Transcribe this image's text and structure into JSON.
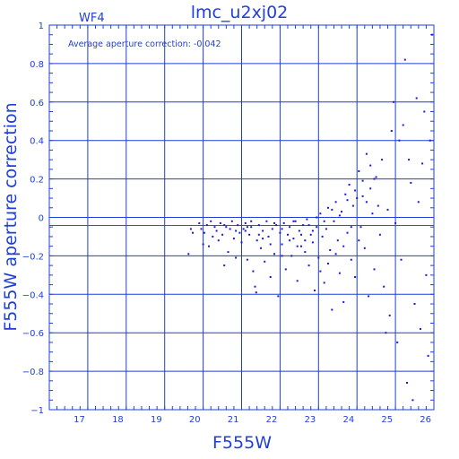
{
  "colors": {
    "axis": "#1f3fd8",
    "points": "#1a1ad6",
    "mean_line": "#b03030",
    "background": "#ffffff"
  },
  "chart_data": {
    "type": "scatter",
    "title": "lmc_u2xj02",
    "subtitle": "WF4",
    "annotation": "Average aperture correction:  -0.042",
    "xlabel": "F555W",
    "ylabel": "F555W aperture correction",
    "xlim": [
      16,
      26
    ],
    "ylim": [
      -1,
      1
    ],
    "x_ticks": [
      17,
      18,
      19,
      20,
      21,
      22,
      23,
      24,
      25,
      26
    ],
    "y_ticks": [
      -1,
      -0.8,
      -0.6,
      -0.4,
      -0.2,
      0,
      0.2,
      0.4,
      0.6,
      0.8,
      1
    ],
    "x_tick_labels": [
      "17",
      "18",
      "19",
      "20",
      "21",
      "22",
      "23",
      "24",
      "25",
      "26"
    ],
    "y_tick_labels": [
      "−1",
      "−0.8",
      "−0.6",
      "−0.4",
      "−0.2",
      "0",
      "0.2",
      "0.4",
      "0.6",
      "0.8",
      "1"
    ],
    "grid": true,
    "reference_line_y": -0.042,
    "points": [
      [
        19.62,
        -0.19
      ],
      [
        19.68,
        -0.06
      ],
      [
        19.73,
        -0.08
      ],
      [
        19.9,
        -0.03
      ],
      [
        19.95,
        -0.06
      ],
      [
        20.0,
        -0.14
      ],
      [
        20.03,
        -0.08
      ],
      [
        20.1,
        -0.04
      ],
      [
        20.15,
        -0.15
      ],
      [
        20.2,
        -0.02
      ],
      [
        20.25,
        -0.1
      ],
      [
        20.3,
        -0.05
      ],
      [
        20.35,
        -0.07
      ],
      [
        20.4,
        -0.12
      ],
      [
        20.45,
        -0.03
      ],
      [
        20.5,
        -0.09
      ],
      [
        20.55,
        -0.25
      ],
      [
        20.6,
        -0.05
      ],
      [
        20.65,
        -0.18
      ],
      [
        20.7,
        -0.06
      ],
      [
        20.75,
        -0.02
      ],
      [
        20.8,
        -0.11
      ],
      [
        20.85,
        -0.21
      ],
      [
        20.9,
        -0.04
      ],
      [
        20.95,
        -0.08
      ],
      [
        21.0,
        -0.13
      ],
      [
        21.05,
        -0.06
      ],
      [
        21.1,
        -0.03
      ],
      [
        21.15,
        -0.22
      ],
      [
        21.2,
        -0.09
      ],
      [
        21.25,
        -0.05
      ],
      [
        21.3,
        -0.28
      ],
      [
        21.35,
        -0.36
      ],
      [
        21.38,
        -0.39
      ],
      [
        21.4,
        -0.12
      ],
      [
        21.45,
        -0.04
      ],
      [
        21.5,
        -0.16
      ],
      [
        21.55,
        -0.07
      ],
      [
        21.6,
        -0.23
      ],
      [
        21.65,
        -0.02
      ],
      [
        21.7,
        -0.1
      ],
      [
        21.75,
        -0.31
      ],
      [
        21.8,
        -0.06
      ],
      [
        21.85,
        -0.19
      ],
      [
        21.9,
        -0.04
      ],
      [
        21.95,
        -0.41
      ],
      [
        22.0,
        -0.08
      ],
      [
        22.05,
        -0.14
      ],
      [
        22.1,
        -0.03
      ],
      [
        22.15,
        -0.27
      ],
      [
        22.2,
        -0.09
      ],
      [
        22.25,
        -0.05
      ],
      [
        22.3,
        -0.2
      ],
      [
        22.35,
        -0.11
      ],
      [
        22.4,
        -0.02
      ],
      [
        22.45,
        -0.33
      ],
      [
        22.5,
        -0.07
      ],
      [
        22.55,
        -0.15
      ],
      [
        22.6,
        -0.04
      ],
      [
        22.65,
        -0.18
      ],
      [
        22.7,
        -0.01
      ],
      [
        22.75,
        -0.25
      ],
      [
        22.8,
        -0.09
      ],
      [
        22.85,
        -0.13
      ],
      [
        22.9,
        -0.38
      ],
      [
        22.95,
        -0.05
      ],
      [
        23.0,
        -0.21
      ],
      [
        23.05,
        0.02
      ],
      [
        23.1,
        -0.1
      ],
      [
        23.15,
        -0.34
      ],
      [
        23.2,
        -0.06
      ],
      [
        23.25,
        0.05
      ],
      [
        23.3,
        -0.17
      ],
      [
        23.35,
        -0.48
      ],
      [
        23.4,
        -0.02
      ],
      [
        23.45,
        0.08
      ],
      [
        23.5,
        -0.12
      ],
      [
        23.55,
        -0.29
      ],
      [
        23.6,
        0.03
      ],
      [
        23.65,
        -0.44
      ],
      [
        23.7,
        0.12
      ],
      [
        23.75,
        -0.08
      ],
      [
        23.8,
        0.17
      ],
      [
        23.85,
        -0.22
      ],
      [
        23.9,
        0.06
      ],
      [
        23.95,
        -0.31
      ],
      [
        24.0,
        0.1
      ],
      [
        24.05,
        0.24
      ],
      [
        24.1,
        -0.05
      ],
      [
        24.15,
        0.19
      ],
      [
        24.2,
        -0.16
      ],
      [
        24.25,
        0.08
      ],
      [
        24.3,
        -0.41
      ],
      [
        24.35,
        0.15
      ],
      [
        24.4,
        0.02
      ],
      [
        24.45,
        -0.27
      ],
      [
        24.5,
        0.21
      ],
      [
        24.6,
        -0.09
      ],
      [
        24.65,
        0.3
      ],
      [
        24.7,
        -0.36
      ],
      [
        24.75,
        -0.6
      ],
      [
        24.8,
        0.04
      ],
      [
        24.85,
        -0.51
      ],
      [
        24.9,
        0.45
      ],
      [
        24.95,
        0.6
      ],
      [
        25.0,
        -0.03
      ],
      [
        25.05,
        -0.65
      ],
      [
        25.1,
        0.4
      ],
      [
        25.15,
        -0.22
      ],
      [
        25.2,
        0.48
      ],
      [
        25.25,
        0.82
      ],
      [
        25.3,
        -0.86
      ],
      [
        25.35,
        0.3
      ],
      [
        25.4,
        0.18
      ],
      [
        25.45,
        -0.95
      ],
      [
        25.5,
        -0.45
      ],
      [
        25.55,
        0.62
      ],
      [
        25.6,
        0.08
      ],
      [
        25.65,
        -0.58
      ],
      [
        25.7,
        0.28
      ],
      [
        25.75,
        0.55
      ],
      [
        25.8,
        -0.3
      ],
      [
        25.85,
        -0.72
      ],
      [
        25.9,
        0.4
      ],
      [
        25.95,
        0.95
      ],
      [
        21.1,
        -0.07
      ],
      [
        21.25,
        -0.02
      ],
      [
        21.55,
        -0.11
      ],
      [
        21.85,
        -0.03
      ],
      [
        22.05,
        -0.06
      ],
      [
        22.35,
        -0.02
      ],
      [
        22.55,
        -0.09
      ],
      [
        22.75,
        -0.04
      ],
      [
        22.95,
        0.0
      ],
      [
        23.15,
        -0.02
      ],
      [
        23.35,
        0.04
      ],
      [
        23.55,
        0.01
      ],
      [
        23.75,
        0.09
      ],
      [
        23.95,
        0.14
      ],
      [
        24.15,
        0.11
      ],
      [
        24.35,
        0.27
      ],
      [
        24.55,
        0.06
      ],
      [
        24.25,
        0.33
      ],
      [
        24.45,
        0.2
      ],
      [
        24.05,
        -0.12
      ],
      [
        23.85,
        -0.05
      ],
      [
        23.65,
        -0.15
      ],
      [
        23.45,
        -0.19
      ],
      [
        23.25,
        -0.24
      ],
      [
        23.05,
        -0.28
      ],
      [
        22.85,
        -0.07
      ],
      [
        22.65,
        -0.12
      ],
      [
        22.45,
        -0.15
      ],
      [
        22.25,
        -0.12
      ],
      [
        22.05,
        -0.2
      ],
      [
        21.75,
        -0.14
      ],
      [
        21.45,
        -0.09
      ],
      [
        21.15,
        -0.05
      ],
      [
        20.85,
        -0.07
      ],
      [
        20.55,
        -0.04
      ]
    ]
  }
}
